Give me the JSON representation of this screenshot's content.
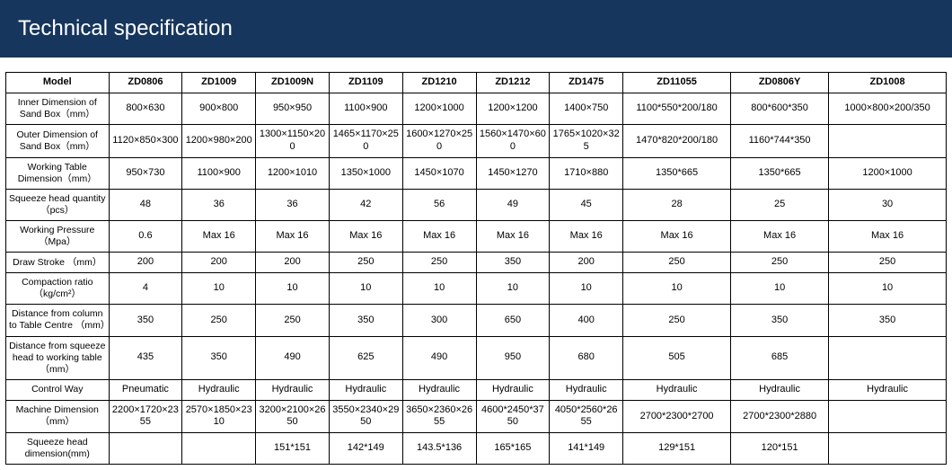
{
  "header": {
    "title": "Technical specification",
    "background": "#17365d",
    "text_color": "#ffffff"
  },
  "table": {
    "columns": [
      "Model",
      "ZD0806",
      "ZD1009",
      "ZD1009N",
      "ZD1109",
      "ZD1210",
      "ZD1212",
      "ZD1475",
      "ZD11055",
      "ZD0806Y",
      "ZD1008"
    ],
    "column_widths_pct": [
      10.5,
      7.5,
      7.5,
      7.5,
      7.5,
      7.5,
      7.5,
      7.5,
      11,
      10,
      12
    ],
    "rows": [
      {
        "label": "Inner Dimension of Sand Box（mm）",
        "cells": [
          "800×630",
          "900×800",
          "950×950",
          "1100×900",
          "1200×1000",
          "1200×1200",
          "1400×750",
          "1100*550*200/180",
          "800*600*350",
          "1000×800×200/350"
        ]
      },
      {
        "label": "Outer Dimension of Sand Box（mm）",
        "cells": [
          "1120×850×300",
          "1200×980×200",
          "1300×1150×200",
          "1465×1170×250",
          "1600×1270×250",
          "1560×1470×600",
          "1765×1020×325",
          "1470*820*200/180",
          "1160*744*350",
          ""
        ]
      },
      {
        "label": "Working Table Dimension（mm）",
        "cells": [
          "950×730",
          "1100×900",
          "1200×1010",
          "1350×1000",
          "1450×1070",
          "1450×1270",
          "1710×880",
          "1350*665",
          "1350*665",
          "1200×1000"
        ]
      },
      {
        "label": "Squeeze head quantity（pcs）",
        "cells": [
          "48",
          "36",
          "36",
          "42",
          "56",
          "49",
          "45",
          "28",
          "25",
          "30"
        ]
      },
      {
        "label": "Working Pressure（Mpa）",
        "cells": [
          "0.6",
          "Max 16",
          "Max 16",
          "Max 16",
          "Max 16",
          "Max 16",
          "Max 16",
          "Max 16",
          "Max 16",
          "Max 16"
        ]
      },
      {
        "label": "Draw Stroke （mm）",
        "cells": [
          "200",
          "200",
          "200",
          "250",
          "250",
          "350",
          "200",
          "250",
          "250",
          "250"
        ]
      },
      {
        "label": "Compaction ratio（kg/cm²）",
        "cells": [
          "4",
          "10",
          "10",
          "10",
          "10",
          "10",
          "10",
          "10",
          "10",
          "10"
        ]
      },
      {
        "label": "Distance from column to Table Centre （mm）",
        "cells": [
          "350",
          "250",
          "250",
          "350",
          "300",
          "650",
          "400",
          "250",
          "350",
          "350"
        ]
      },
      {
        "label": "Distance from squeeze head to working table（mm）",
        "cells": [
          "435",
          "350",
          "490",
          "625",
          "490",
          "950",
          "680",
          "505",
          "685",
          ""
        ]
      },
      {
        "label": "Control Way",
        "cells": [
          "Pneumatic",
          "Hydraulic",
          "Hydraulic",
          "Hydraulic",
          "Hydraulic",
          "Hydraulic",
          "Hydraulic",
          "Hydraulic",
          "Hydraulic",
          "Hydraulic"
        ]
      },
      {
        "label": "Machine Dimension（mm）",
        "cells": [
          "2200×1720×2355",
          "2570×1850×2310",
          "3200×2100×2650",
          "3550×2340×2950",
          "3650×2360×2655",
          "4600*2450*3750",
          "4050*2560*2655",
          "2700*2300*2700",
          "2700*2300*2880",
          ""
        ]
      },
      {
        "label": "Squeeze head dimension(mm)",
        "cells": [
          "",
          "",
          "151*151",
          "142*149",
          "143.5*136",
          "165*165",
          "141*149",
          "129*151",
          "120*151",
          ""
        ]
      }
    ],
    "border_color": "#000000",
    "font_size_header": 11,
    "font_size_cell": 11
  }
}
